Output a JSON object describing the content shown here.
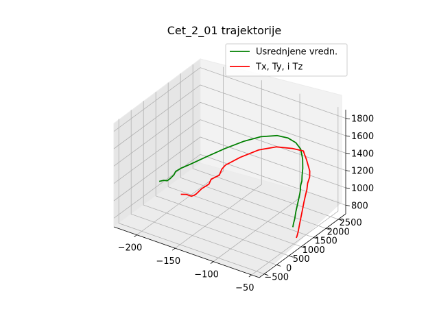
{
  "chart_data": {
    "type": "line",
    "projection": "3d",
    "title": "Cet_2_01 trajektorije",
    "xlabel": "",
    "ylabel": "",
    "zlabel": "",
    "xlim": [
      -230,
      -40
    ],
    "ylim": [
      -700,
      2800
    ],
    "zlim": [
      700,
      1900
    ],
    "x_ticks": [
      -200,
      -150,
      -100,
      -50
    ],
    "y_ticks": [
      -500,
      0,
      500,
      1000,
      1500,
      2000,
      2500
    ],
    "z_ticks": [
      800,
      1000,
      1200,
      1400,
      1600,
      1800
    ],
    "x_tick_labels": [
      "−200",
      "−150",
      "−100",
      "−50"
    ],
    "y_tick_labels": [
      "−500",
      "0",
      "500",
      "1000",
      "1500",
      "2000",
      "2500"
    ],
    "z_tick_labels": [
      "800",
      "1000",
      "1200",
      "1400",
      "1600",
      "1800"
    ],
    "grid": true,
    "legend_position": "top-right",
    "series": [
      {
        "name": "Usrednjene vredn.",
        "color": "#008000",
        "points": [
          [
            -225,
            980,
            887
          ],
          [
            -221,
            1040,
            899
          ],
          [
            -218,
            1090,
            893
          ],
          [
            -215,
            1130,
            922
          ],
          [
            -214,
            1160,
            936
          ],
          [
            -212,
            1170,
            960
          ],
          [
            -210,
            1180,
            1005
          ],
          [
            -205,
            1240,
            1045
          ],
          [
            -195,
            1330,
            1106
          ],
          [
            -180,
            1470,
            1202
          ],
          [
            -160,
            1630,
            1329
          ],
          [
            -140,
            1760,
            1445
          ],
          [
            -120,
            1850,
            1542
          ],
          [
            -100,
            1880,
            1610
          ],
          [
            -85,
            1850,
            1636
          ],
          [
            -72,
            1770,
            1638
          ],
          [
            -62,
            1660,
            1617
          ],
          [
            -55,
            1520,
            1554
          ],
          [
            -50,
            1370,
            1493
          ],
          [
            -47,
            1250,
            1445
          ],
          [
            -45,
            1180,
            1403
          ],
          [
            -44,
            1110,
            1382
          ],
          [
            -43.5,
            1080,
            1370
          ],
          [
            -43,
            1060,
            1331
          ],
          [
            -43,
            1030,
            1287
          ],
          [
            -43,
            980,
            1232
          ],
          [
            -43,
            930,
            1177
          ],
          [
            -43,
            880,
            1125
          ],
          [
            -43,
            850,
            1085
          ],
          [
            -43,
            830,
            1047
          ],
          [
            -43,
            780,
            1004
          ],
          [
            -43,
            750,
            968
          ]
        ]
      },
      {
        "name": "Tx, Ty, i Tz",
        "color": "#ff0000",
        "points": [
          [
            -200,
            1080,
            794
          ],
          [
            -194,
            1120,
            803
          ],
          [
            -188,
            1140,
            796
          ],
          [
            -185,
            1160,
            813
          ],
          [
            -183,
            1170,
            830
          ],
          [
            -181,
            1190,
            853
          ],
          [
            -178,
            1240,
            892
          ],
          [
            -170,
            1290,
            960
          ],
          [
            -168,
            1320,
            1016
          ],
          [
            -160,
            1400,
            1069
          ],
          [
            -158,
            1440,
            1137
          ],
          [
            -155,
            1490,
            1182
          ],
          [
            -140,
            1620,
            1290
          ],
          [
            -120,
            1760,
            1409
          ],
          [
            -100,
            1860,
            1484
          ],
          [
            -80,
            1880,
            1523
          ],
          [
            -65,
            1860,
            1545
          ],
          [
            -62,
            1800,
            1538
          ],
          [
            -55,
            1680,
            1512
          ],
          [
            -45,
            1500,
            1450
          ],
          [
            -42,
            1400,
            1411
          ],
          [
            -42,
            1320,
            1357
          ],
          [
            -41,
            1260,
            1300
          ],
          [
            -41,
            1200,
            1245
          ],
          [
            -41,
            1140,
            1180
          ],
          [
            -41,
            1080,
            1107
          ],
          [
            -41,
            1020,
            1033
          ],
          [
            -41,
            960,
            958
          ],
          [
            -41,
            900,
            883
          ],
          [
            -41,
            860,
            848
          ],
          [
            -41,
            830,
            835
          ]
        ]
      }
    ]
  }
}
